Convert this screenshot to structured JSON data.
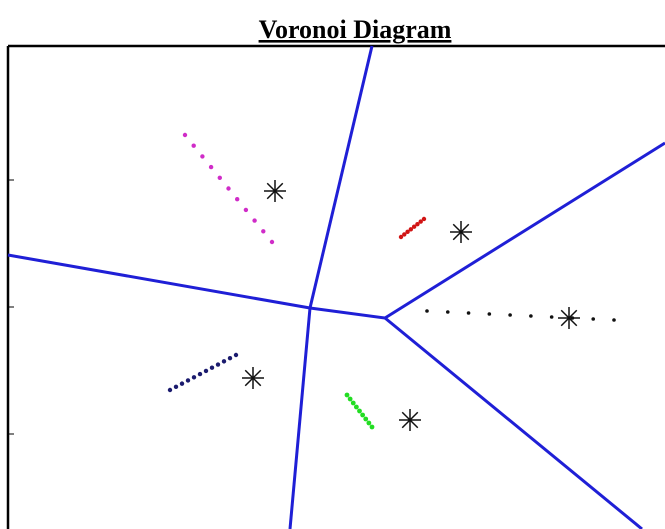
{
  "title": "Voronoi Diagram"
}
